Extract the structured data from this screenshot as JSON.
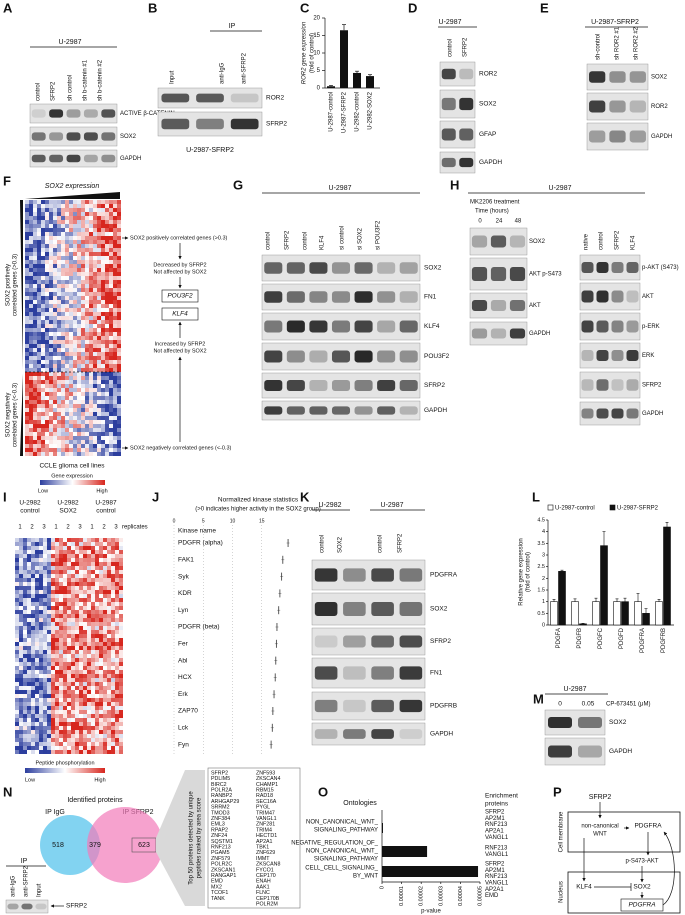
{
  "panels": {
    "A": {
      "letter": "A",
      "cell_line": "U-2987",
      "lanes": [
        "control",
        "SFRP2",
        "sh control",
        "sh b-catenin #1",
        "sh b-catenin #2"
      ],
      "bands": [
        "ACTIVE β-CATENIN",
        "SOX2",
        "GAPDH"
      ]
    },
    "B": {
      "letter": "B",
      "ip": "IP",
      "lanes": [
        "Input",
        "anti-IgG",
        "anti-SFRP2"
      ],
      "bands": [
        "ROR2",
        "SFRP2"
      ],
      "cell_line": "U-2987-SFRP2"
    },
    "C": {
      "letter": "C",
      "y_label": [
        "ROR2 gene expression",
        "(fold of control)"
      ],
      "categories": [
        "U-2987-control",
        "U-2987-SFRP2",
        "U-2982-control",
        "U-2982-SOX2"
      ],
      "values": [
        0.5,
        16.5,
        4.3,
        3.4
      ],
      "errors": [
        0.2,
        1.6,
        0.5,
        0.4
      ],
      "color": "#111111",
      "ylim": [
        0,
        20
      ],
      "yticks": [
        0,
        5,
        10,
        15,
        20
      ]
    },
    "D": {
      "letter": "D",
      "cell_line": "U-2987",
      "lanes": [
        "control",
        "SFRP2"
      ],
      "bands": [
        "ROR2",
        "SOX2",
        "GFAP",
        "GAPDH"
      ]
    },
    "E": {
      "letter": "E",
      "cell_line": "U-2987-SFRP2",
      "lanes": [
        "sh-control",
        "sh ROR2 #1",
        "sh ROR2 #2"
      ],
      "bands": [
        "SOX2",
        "ROR2",
        "GAPDH"
      ]
    },
    "F": {
      "letter": "F",
      "title": "SOX2 expression",
      "side_labels": [
        [
          "SOX2 positively",
          "correlated genes (>0.3)"
        ],
        [
          "SOX2 negatively",
          "correlated genes (<-0.3)"
        ]
      ],
      "x_label": "CCLE glioma cell lines",
      "legend_title": "Gene expression",
      "legend_low": "Low",
      "legend_high": "High",
      "flow": {
        "positive": "SOX2 positively correlated genes (>0.3)",
        "decreased": [
          "Decreased by SFRP2",
          "Not affected by SOX2"
        ],
        "genes": [
          "POU3F2",
          "KLF4"
        ],
        "increased": [
          "Increased by SFRP2",
          "Not affected by SOX2"
        ],
        "negative": "SOX2 negatively correlated genes (<-0.3)"
      }
    },
    "G": {
      "letter": "G",
      "cell_line": "U-2987",
      "lanes": [
        "control",
        "SFRP2",
        "control",
        "KLF4",
        "si control",
        "si SOX2",
        "si POU3F2"
      ],
      "bands": [
        "SOX2",
        "FN1",
        "KLF4",
        "POU3F2",
        "SFRP2",
        "GAPDH"
      ]
    },
    "H": {
      "letter": "H",
      "cell_line": "U-2987",
      "treatment": "MK2206 treatment",
      "time_label": "Time (hours)",
      "times": [
        "0",
        "24",
        "48"
      ],
      "left_bands": [
        "SOX2",
        "AKT p-S473",
        "AKT",
        "GAPDH"
      ],
      "lanes": [
        "native",
        "control",
        "SFRP2",
        "KLF4"
      ],
      "bands": [
        "p-AKT (S473)",
        "AKT",
        "p-ERK",
        "ERK",
        "SFRP2",
        "GAPDH"
      ]
    },
    "I": {
      "letter": "I",
      "groups": [
        [
          "U-2982",
          "control"
        ],
        [
          "U-2982",
          "SOX2"
        ],
        [
          "U-2987",
          "control"
        ]
      ],
      "replicates": [
        "1",
        "2",
        "3",
        "1",
        "2",
        "3",
        "1",
        "2",
        "3"
      ],
      "replicates_label": "replicates",
      "legend_title": "Peptide phosphorylation",
      "legend_low": "Low",
      "legend_high": "High"
    },
    "J": {
      "letter": "J",
      "title": "Normalized kinase statistics",
      "subtitle": "(>0 indicates higher activity in the SOX2 group)",
      "y_label": "Kinase name",
      "categories": [
        "PDGFR (alpha)",
        "FAK1",
        "Syk",
        "KDR",
        "Lyn",
        "PDGFR (beta)",
        "Fer",
        "Abl",
        "HCX",
        "Erk",
        "ZAP70",
        "Lck",
        "Fyn"
      ],
      "values": [
        19.5,
        18.6,
        18.4,
        18.1,
        17.9,
        17.6,
        17.5,
        17.4,
        17.3,
        17.1,
        16.9,
        16.8,
        16.6
      ],
      "xlim": [
        0,
        20
      ],
      "xticks": [
        0,
        5,
        10,
        15
      ]
    },
    "K": {
      "letter": "K",
      "groups": [
        "U-2982",
        "U-2987"
      ],
      "lanes": [
        "control",
        "SOX2",
        "control",
        "SFRP2"
      ],
      "bands": [
        "PDGFRA",
        "SOX2",
        "SFRP2",
        "FN1",
        "PDGFRB",
        "GAPDH"
      ]
    },
    "L": {
      "letter": "L",
      "y_label": [
        "Relative gene expression",
        "(fold of control)"
      ],
      "categories": [
        "PDGFA",
        "PDGFB",
        "PDGFC",
        "PDGFD",
        "PDGFRA",
        "PDGFRB"
      ],
      "series": [
        {
          "name": "U-2987-control",
          "color": "#ffffff",
          "values": [
            1,
            1,
            1,
            1,
            1,
            1
          ],
          "errors": [
            0.1,
            0.12,
            0.15,
            0.12,
            0.35,
            0.1
          ]
        },
        {
          "name": "U-2987-SFRP2",
          "color": "#111111",
          "values": [
            2.3,
            0.05,
            3.4,
            1.0,
            0.5,
            4.2
          ],
          "errors": [
            0.05,
            0.02,
            0.6,
            0.15,
            0.2,
            0.2
          ]
        }
      ],
      "ylim": [
        0,
        4.5
      ],
      "yticks": [
        0,
        0.5,
        1,
        1.5,
        2,
        2.5,
        3,
        3.5,
        4,
        4.5
      ]
    },
    "M": {
      "letter": "M",
      "cell_line": "U-2987",
      "doses": [
        "0",
        "0.05"
      ],
      "dose_label": "CP-673451 (μM)",
      "bands": [
        "SOX2",
        "GAPDH"
      ]
    },
    "N": {
      "letter": "N",
      "title": "Identified proteins",
      "sets": [
        "IP IgG",
        "IP SFRP2"
      ],
      "counts": [
        518,
        379,
        623
      ],
      "top_label": [
        "Top 50 proteins detected by unique",
        "peptides ranked by area score"
      ],
      "proteins": [
        [
          "SFRP2",
          "PDLIM5",
          "BIRC2",
          "POLR2A",
          "RANBP2",
          "ARHGAP29",
          "SRRM2",
          "TMOD3",
          "ZNF384",
          "EML3",
          "RPAP2",
          "ZNF24",
          "SQSTM1",
          "RNF213",
          "PGAM5",
          "ZNF579",
          "POLR2C",
          "ZKSCAN1",
          "RANGAP1",
          "EMD",
          "MX2",
          "TCOF1",
          "TANK"
        ],
        [
          "ZNF593",
          "ZKSCAN4",
          "CHAMP1",
          "RBM15",
          "RAD18",
          "SEC16A",
          "PYGL",
          "TRIM47",
          "VANGL1",
          "ZNF281",
          "TRIM4",
          "HECTD1",
          "AP2A1",
          "TBK1",
          "ZNF629",
          "IMMT",
          "ZKSCAN8",
          "FYCO1",
          "CEP170",
          "ENAH",
          "AAK1",
          "FLNC",
          "CEP170B",
          "POLR2M"
        ]
      ],
      "ip_blot": {
        "ip": "IP",
        "lanes": [
          "anti-IgG",
          "anti-SFRP2",
          "Input"
        ],
        "band": "SFRP2"
      }
    },
    "O": {
      "letter": "O",
      "title": "Ontologies",
      "proteins_title": [
        "Enrichment",
        "proteins"
      ],
      "terms": [
        [
          "NON_CANONICAL_WNT_",
          "SIGNALING_PATHWAY"
        ],
        [
          "NEGATIVE_REGULATION_OF_",
          "NON_CANONICAL_WNT_",
          "SIGNALING_PATHWAY"
        ],
        [
          "CELL_CELL_SIGNALING_",
          "BY_WNT"
        ]
      ],
      "values": [
        5e-07,
        2.3e-05,
        4.9e-05
      ],
      "color": "#111111",
      "proteins": [
        [
          "SFRP2",
          "AP2M1",
          "RNF213",
          "AP2A1",
          "VANGL1"
        ],
        [
          "RNF213",
          "VANGL1"
        ],
        [
          "SFRP2",
          "AP2M1",
          "RNF213",
          "VANGL1",
          "AP2A1",
          "EMD"
        ]
      ],
      "x_label": "p-value",
      "xlim": [
        0,
        5e-05
      ],
      "xticks": [
        0,
        1e-05,
        2e-05,
        3e-05,
        4e-05,
        5e-05
      ]
    },
    "P": {
      "letter": "P",
      "labels": {
        "sfrp2": "SFRP2",
        "membrane": "Cell membrane",
        "wnt": [
          "non-canonical",
          "WNT"
        ],
        "pdgfra": "PDGFRA",
        "akt": "p-S473-AKT",
        "nucleus": "Nucleus",
        "klf4": "KLF4",
        "sox2": "SOX2",
        "gene": "PDGFRA"
      }
    }
  }
}
